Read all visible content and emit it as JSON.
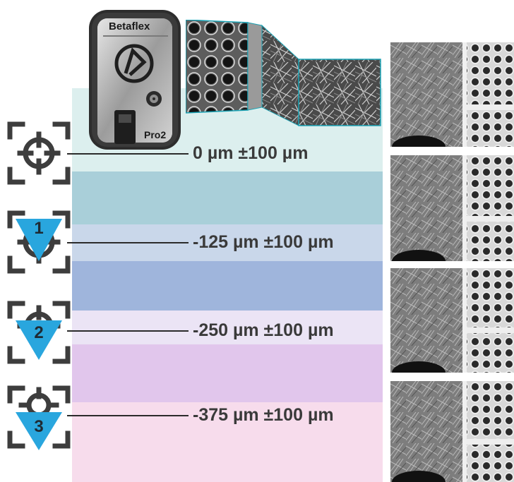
{
  "device": {
    "brand": "Betaflex",
    "model": "Pro2"
  },
  "levels": [
    {
      "depth": "0 µm ±100 µm",
      "icon": "crosshair-target-icon"
    },
    {
      "depth": "-125 µm ±100 µm",
      "icon": "crosshair-step-1-icon",
      "step": "1"
    },
    {
      "depth": "-250 µm ±100 µm",
      "icon": "crosshair-step-2-icon",
      "step": "2"
    },
    {
      "depth": "-375 µm ±100 µm",
      "icon": "crosshair-step-3-icon",
      "step": "3"
    }
  ],
  "colors": {
    "band_cyan_light": "#dcefee",
    "band_cyan": "#a9cfd9",
    "band_blue_light": "#c9d7ea",
    "band_blue": "#9fb5dc",
    "band_lavender": "#ebe4f5",
    "band_purple": "#e1c6ec",
    "band_pink": "#f7dcec",
    "triangle_blue": "#29a6de",
    "icon_gray": "#3d3d3d"
  }
}
